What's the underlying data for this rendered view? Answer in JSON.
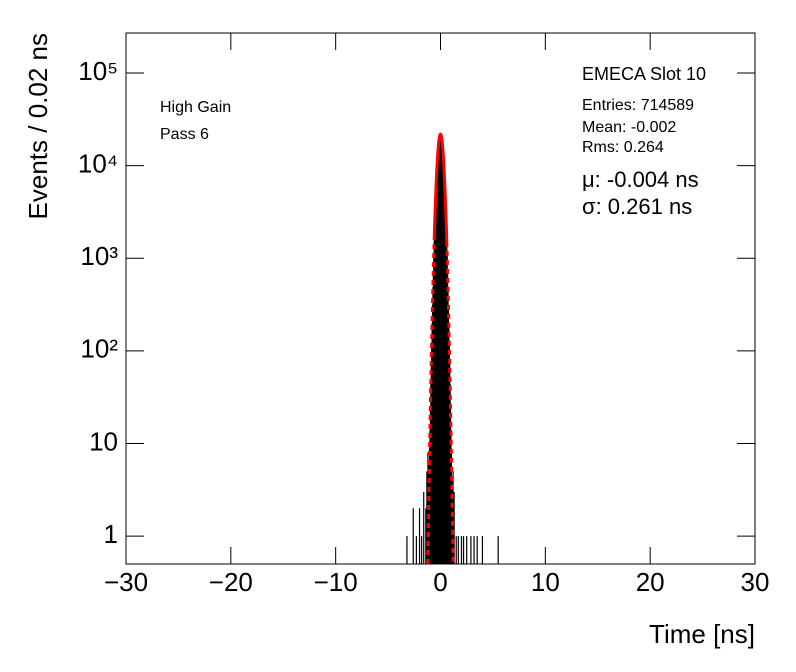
{
  "chart_data": {
    "type": "histogram",
    "x_label": "Time [ns]",
    "y_label": "Events / 0.02 ns",
    "log_y": true,
    "xlim": [
      -30,
      30
    ],
    "ylim": [
      0.5,
      270000
    ],
    "xticks": [
      {
        "value": -30,
        "label": "−30"
      },
      {
        "value": -20,
        "label": "−20"
      },
      {
        "value": -10,
        "label": "−10"
      },
      0,
      10,
      20,
      30
    ],
    "yticks": [
      1,
      10,
      {
        "value": 100,
        "label": "10²"
      },
      {
        "value": 1000,
        "label": "10³"
      },
      {
        "value": 10000,
        "label": "10⁴"
      },
      {
        "value": 100000,
        "label": "10⁵"
      }
    ],
    "color": "#000000",
    "x": [
      -3.2,
      -2.6,
      -2.3,
      -2.0,
      -1.8,
      -1.6,
      -1.4,
      -1.3,
      -1.2,
      -1.12,
      -1.08,
      -1.04,
      -1.0,
      -0.96,
      -0.92,
      -0.88,
      -0.84,
      -0.8,
      -0.76,
      -0.72,
      -0.68,
      -0.64,
      -0.6,
      -0.56,
      -0.52,
      -0.48,
      -0.44,
      -0.4,
      -0.36,
      -0.32,
      -0.28,
      -0.24,
      -0.2,
      -0.16,
      -0.12,
      -0.08,
      -0.04,
      0,
      0.04,
      0.08,
      0.12,
      0.16,
      0.2,
      0.24,
      0.28,
      0.32,
      0.36,
      0.4,
      0.44,
      0.48,
      0.52,
      0.56,
      0.6,
      0.64,
      0.68,
      0.72,
      0.76,
      0.8,
      0.84,
      0.88,
      0.92,
      0.96,
      1.0,
      1.04,
      1.08,
      1.12,
      1.2,
      1.3,
      1.5,
      1.7,
      2.0,
      2.2,
      2.5,
      2.9,
      3.2,
      3.5,
      4.0,
      5.5
    ],
    "values": [
      1,
      2,
      1,
      2,
      1,
      3,
      2,
      5,
      8,
      6,
      4,
      9,
      14,
      25,
      44,
      74,
      123,
      199,
      314,
      486,
      733,
      1080,
      1554,
      2185,
      3000,
      4030,
      5270,
      6750,
      8440,
      10300,
      12290,
      14310,
      16290,
      18100,
      19660,
      20850,
      21600,
      21850,
      21600,
      20850,
      19660,
      18100,
      16290,
      14310,
      12290,
      10300,
      8440,
      6750,
      5270,
      4030,
      3000,
      2185,
      1554,
      1080,
      733,
      486,
      314,
      199,
      123,
      74,
      44,
      25,
      14,
      8,
      4,
      2,
      5,
      3,
      1,
      1,
      1,
      1,
      1,
      1,
      1,
      1,
      1,
      1
    ],
    "fit": {
      "mu": -0.004,
      "sigma": 0.261,
      "amplitude": 21850,
      "range": [
        -0.6,
        0.6
      ],
      "color": "#ff0000"
    },
    "annotations_left": [
      "High Gain",
      "Pass 6"
    ],
    "stats_title": "EMECA Slot 10",
    "stats": [
      "Entries: 714589",
      "Mean: -0.002",
      "Rms: 0.264"
    ],
    "fit_text": [
      "μ: -0.004 ns",
      "σ: 0.261 ns"
    ]
  }
}
